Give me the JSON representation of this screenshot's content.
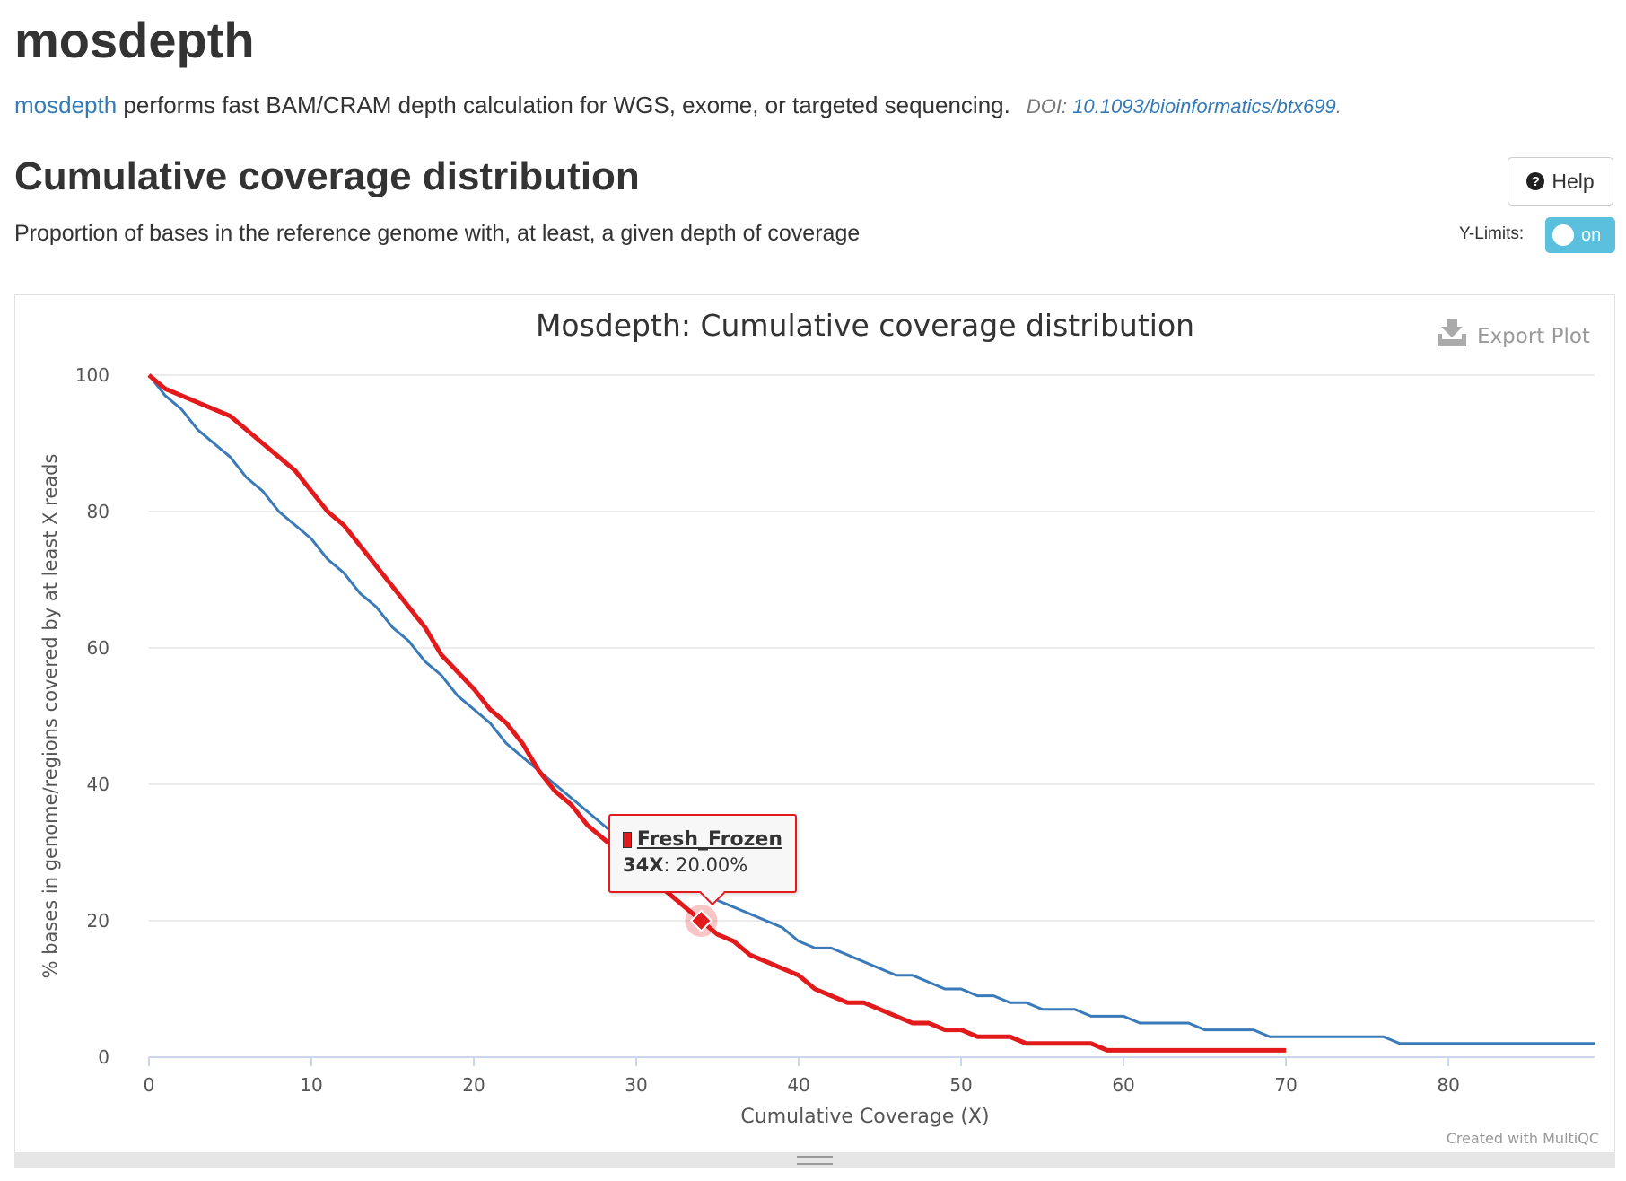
{
  "header": {
    "title": "mosdepth",
    "intro_link": "mosdepth",
    "intro_text": " performs fast BAM/CRAM depth calculation for WGS, exome, or targeted sequencing.",
    "doi_prefix": "DOI: ",
    "doi_link": "10.1093/bioinformatics/btx699",
    "doi_suffix": "."
  },
  "section": {
    "title": "Cumulative coverage distribution",
    "description": "Proportion of bases in the reference genome with, at least, a given depth of coverage",
    "help_label": "Help",
    "ylimits_label": "Y-Limits:",
    "ylimits_toggle": "on"
  },
  "plot": {
    "export_label": "Export Plot",
    "credit": "Created with MultiQC"
  },
  "tooltip": {
    "series": "Fresh_Frozen",
    "x_label": "34X",
    "value_text": ": 20.00%"
  },
  "colors": {
    "series_red": "#e31a1c",
    "series_blue": "#3a7ab8",
    "accent": "#337ab7",
    "toggle": "#5bc0de"
  },
  "chart_data": {
    "type": "line",
    "title": "Mosdepth: Cumulative coverage distribution",
    "xlabel": "Cumulative Coverage (X)",
    "ylabel": "% bases in genome/regions covered by at least X reads",
    "xlim": [
      0,
      89
    ],
    "ylim": [
      0,
      100
    ],
    "x_ticks": [
      0,
      10,
      20,
      30,
      40,
      50,
      60,
      70,
      80
    ],
    "y_ticks": [
      0,
      20,
      40,
      60,
      80,
      100
    ],
    "grid": true,
    "series": [
      {
        "name": "Fresh_Frozen",
        "color": "#e31a1c",
        "points": [
          [
            0,
            100
          ],
          [
            1,
            98
          ],
          [
            3,
            96
          ],
          [
            5,
            94
          ],
          [
            7,
            90
          ],
          [
            9,
            86
          ],
          [
            11,
            80
          ],
          [
            12,
            78
          ],
          [
            14,
            72
          ],
          [
            17,
            63
          ],
          [
            18,
            59
          ],
          [
            20,
            54
          ],
          [
            21,
            51
          ],
          [
            22,
            49
          ],
          [
            23,
            46
          ],
          [
            24,
            42
          ],
          [
            25,
            39
          ],
          [
            26,
            37
          ],
          [
            27,
            34
          ],
          [
            28,
            32
          ],
          [
            30,
            28
          ],
          [
            32,
            24
          ],
          [
            34,
            20
          ],
          [
            35,
            18
          ],
          [
            36,
            17
          ],
          [
            37,
            15
          ],
          [
            38,
            14
          ],
          [
            40,
            12
          ],
          [
            41,
            10
          ],
          [
            42,
            9
          ],
          [
            43,
            8
          ],
          [
            44,
            8
          ],
          [
            47,
            5
          ],
          [
            48,
            5
          ],
          [
            49,
            4
          ],
          [
            50,
            4
          ],
          [
            51,
            3
          ],
          [
            53,
            3
          ],
          [
            54,
            2
          ],
          [
            58,
            2
          ],
          [
            59,
            1
          ],
          [
            70,
            1
          ]
        ]
      },
      {
        "name": "",
        "color": "#3a7ab8",
        "points": [
          [
            0,
            100
          ],
          [
            1,
            97
          ],
          [
            2,
            95
          ],
          [
            3,
            92
          ],
          [
            4,
            90
          ],
          [
            5,
            88
          ],
          [
            6,
            85
          ],
          [
            7,
            83
          ],
          [
            8,
            80
          ],
          [
            10,
            76
          ],
          [
            11,
            73
          ],
          [
            12,
            71
          ],
          [
            13,
            68
          ],
          [
            14,
            66
          ],
          [
            15,
            63
          ],
          [
            16,
            61
          ],
          [
            17,
            58
          ],
          [
            18,
            56
          ],
          [
            19,
            53
          ],
          [
            21,
            49
          ],
          [
            22,
            46
          ],
          [
            24,
            42
          ],
          [
            26,
            38
          ],
          [
            28,
            34
          ],
          [
            30,
            30
          ],
          [
            32,
            27
          ],
          [
            34,
            25
          ],
          [
            35,
            23
          ],
          [
            37,
            21
          ],
          [
            39,
            19
          ],
          [
            40,
            17
          ],
          [
            41,
            16
          ],
          [
            42,
            16
          ],
          [
            45,
            13
          ],
          [
            46,
            12
          ],
          [
            47,
            12
          ],
          [
            49,
            10
          ],
          [
            50,
            10
          ],
          [
            51,
            9
          ],
          [
            52,
            9
          ],
          [
            53,
            8
          ],
          [
            54,
            8
          ],
          [
            55,
            7
          ],
          [
            57,
            7
          ],
          [
            58,
            6
          ],
          [
            60,
            6
          ],
          [
            61,
            5
          ],
          [
            64,
            5
          ],
          [
            65,
            4
          ],
          [
            68,
            4
          ],
          [
            69,
            3
          ],
          [
            76,
            3
          ],
          [
            77,
            2
          ],
          [
            89,
            2
          ]
        ]
      }
    ],
    "highlight": {
      "series": "Fresh_Frozen",
      "x": 34,
      "y": 20
    }
  }
}
